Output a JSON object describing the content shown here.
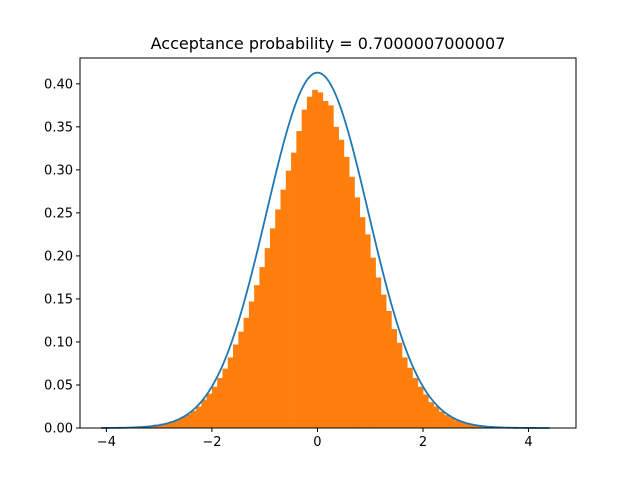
{
  "chart_data": {
    "type": "bar",
    "title": "Acceptance probability = 0.7000007000007",
    "xlabel": "",
    "ylabel": "",
    "xlim": [
      -4.5,
      4.9
    ],
    "ylim": [
      0.0,
      0.43
    ],
    "grid": false,
    "x_ticks": [
      -4,
      -2,
      0,
      2,
      4
    ],
    "x_tick_labels": [
      "−4",
      "−2",
      "0",
      "2",
      "4"
    ],
    "y_ticks": [
      0.0,
      0.05,
      0.1,
      0.15,
      0.2,
      0.25,
      0.3,
      0.35,
      0.4
    ],
    "y_tick_labels": [
      "0.00",
      "0.05",
      "0.10",
      "0.15",
      "0.20",
      "0.25",
      "0.30",
      "0.35",
      "0.40"
    ],
    "histogram": {
      "name": "",
      "color": "#ff7f0e",
      "bin_width": 0.1,
      "bins": [
        {
          "x0": -3.6,
          "x1": -3.5,
          "y": 0.001
        },
        {
          "x0": -3.5,
          "x1": -3.4,
          "y": 0.0015
        },
        {
          "x0": -3.4,
          "x1": -3.3,
          "y": 0.002
        },
        {
          "x0": -3.3,
          "x1": -3.2,
          "y": 0.0025
        },
        {
          "x0": -3.2,
          "x1": -3.1,
          "y": 0.003
        },
        {
          "x0": -3.1,
          "x1": -3.0,
          "y": 0.004
        },
        {
          "x0": -3.0,
          "x1": -2.9,
          "y": 0.005
        },
        {
          "x0": -2.9,
          "x1": -2.8,
          "y": 0.006
        },
        {
          "x0": -2.8,
          "x1": -2.7,
          "y": 0.008
        },
        {
          "x0": -2.7,
          "x1": -2.6,
          "y": 0.01
        },
        {
          "x0": -2.6,
          "x1": -2.5,
          "y": 0.013
        },
        {
          "x0": -2.5,
          "x1": -2.4,
          "y": 0.016
        },
        {
          "x0": -2.4,
          "x1": -2.3,
          "y": 0.02
        },
        {
          "x0": -2.3,
          "x1": -2.2,
          "y": 0.025
        },
        {
          "x0": -2.2,
          "x1": -2.1,
          "y": 0.033
        },
        {
          "x0": -2.1,
          "x1": -2.0,
          "y": 0.04
        },
        {
          "x0": -2.0,
          "x1": -1.9,
          "y": 0.048
        },
        {
          "x0": -1.9,
          "x1": -1.8,
          "y": 0.058
        },
        {
          "x0": -1.8,
          "x1": -1.7,
          "y": 0.069
        },
        {
          "x0": -1.7,
          "x1": -1.6,
          "y": 0.082
        },
        {
          "x0": -1.6,
          "x1": -1.5,
          "y": 0.097
        },
        {
          "x0": -1.5,
          "x1": -1.4,
          "y": 0.112
        },
        {
          "x0": -1.4,
          "x1": -1.3,
          "y": 0.128
        },
        {
          "x0": -1.3,
          "x1": -1.2,
          "y": 0.147
        },
        {
          "x0": -1.2,
          "x1": -1.1,
          "y": 0.166
        },
        {
          "x0": -1.1,
          "x1": -1.0,
          "y": 0.187
        },
        {
          "x0": -1.0,
          "x1": -0.9,
          "y": 0.209
        },
        {
          "x0": -0.9,
          "x1": -0.8,
          "y": 0.232
        },
        {
          "x0": -0.8,
          "x1": -0.7,
          "y": 0.254
        },
        {
          "x0": -0.7,
          "x1": -0.6,
          "y": 0.277
        },
        {
          "x0": -0.6,
          "x1": -0.5,
          "y": 0.299
        },
        {
          "x0": -0.5,
          "x1": -0.4,
          "y": 0.32
        },
        {
          "x0": -0.4,
          "x1": -0.3,
          "y": 0.345
        },
        {
          "x0": -0.3,
          "x1": -0.2,
          "y": 0.37
        },
        {
          "x0": -0.2,
          "x1": -0.1,
          "y": 0.385
        },
        {
          "x0": -0.1,
          "x1": 0.0,
          "y": 0.393
        },
        {
          "x0": 0.0,
          "x1": 0.1,
          "y": 0.39
        },
        {
          "x0": 0.1,
          "x1": 0.2,
          "y": 0.38
        },
        {
          "x0": 0.2,
          "x1": 0.3,
          "y": 0.375
        },
        {
          "x0": 0.3,
          "x1": 0.4,
          "y": 0.35
        },
        {
          "x0": 0.4,
          "x1": 0.5,
          "y": 0.335
        },
        {
          "x0": 0.5,
          "x1": 0.6,
          "y": 0.315
        },
        {
          "x0": 0.6,
          "x1": 0.7,
          "y": 0.292
        },
        {
          "x0": 0.7,
          "x1": 0.8,
          "y": 0.268
        },
        {
          "x0": 0.8,
          "x1": 0.9,
          "y": 0.245
        },
        {
          "x0": 0.9,
          "x1": 1.0,
          "y": 0.225
        },
        {
          "x0": 1.0,
          "x1": 1.1,
          "y": 0.198
        },
        {
          "x0": 1.1,
          "x1": 1.2,
          "y": 0.175
        },
        {
          "x0": 1.2,
          "x1": 1.3,
          "y": 0.155
        },
        {
          "x0": 1.3,
          "x1": 1.4,
          "y": 0.136
        },
        {
          "x0": 1.4,
          "x1": 1.5,
          "y": 0.115
        },
        {
          "x0": 1.5,
          "x1": 1.6,
          "y": 0.099
        },
        {
          "x0": 1.6,
          "x1": 1.7,
          "y": 0.082
        },
        {
          "x0": 1.7,
          "x1": 1.8,
          "y": 0.07
        },
        {
          "x0": 1.8,
          "x1": 1.9,
          "y": 0.058
        },
        {
          "x0": 1.9,
          "x1": 2.0,
          "y": 0.048
        },
        {
          "x0": 2.0,
          "x1": 2.1,
          "y": 0.039
        },
        {
          "x0": 2.1,
          "x1": 2.2,
          "y": 0.03
        },
        {
          "x0": 2.2,
          "x1": 2.3,
          "y": 0.025
        },
        {
          "x0": 2.3,
          "x1": 2.4,
          "y": 0.019
        },
        {
          "x0": 2.4,
          "x1": 2.5,
          "y": 0.015
        },
        {
          "x0": 2.5,
          "x1": 2.6,
          "y": 0.012
        },
        {
          "x0": 2.6,
          "x1": 2.7,
          "y": 0.009
        },
        {
          "x0": 2.7,
          "x1": 2.8,
          "y": 0.007
        },
        {
          "x0": 2.8,
          "x1": 2.9,
          "y": 0.005
        },
        {
          "x0": 2.9,
          "x1": 3.0,
          "y": 0.004
        },
        {
          "x0": 3.0,
          "x1": 3.1,
          "y": 0.003
        },
        {
          "x0": 3.1,
          "x1": 3.2,
          "y": 0.0025
        },
        {
          "x0": 3.2,
          "x1": 3.3,
          "y": 0.002
        },
        {
          "x0": 3.3,
          "x1": 3.4,
          "y": 0.0015
        },
        {
          "x0": 3.4,
          "x1": 3.5,
          "y": 0.001
        }
      ]
    },
    "curve": {
      "name": "",
      "type": "line",
      "color": "#1f77b4",
      "x_range": [
        -4.1,
        4.4
      ],
      "peak_y": 0.413,
      "mean": 0.0,
      "sigma": 0.965
    }
  }
}
